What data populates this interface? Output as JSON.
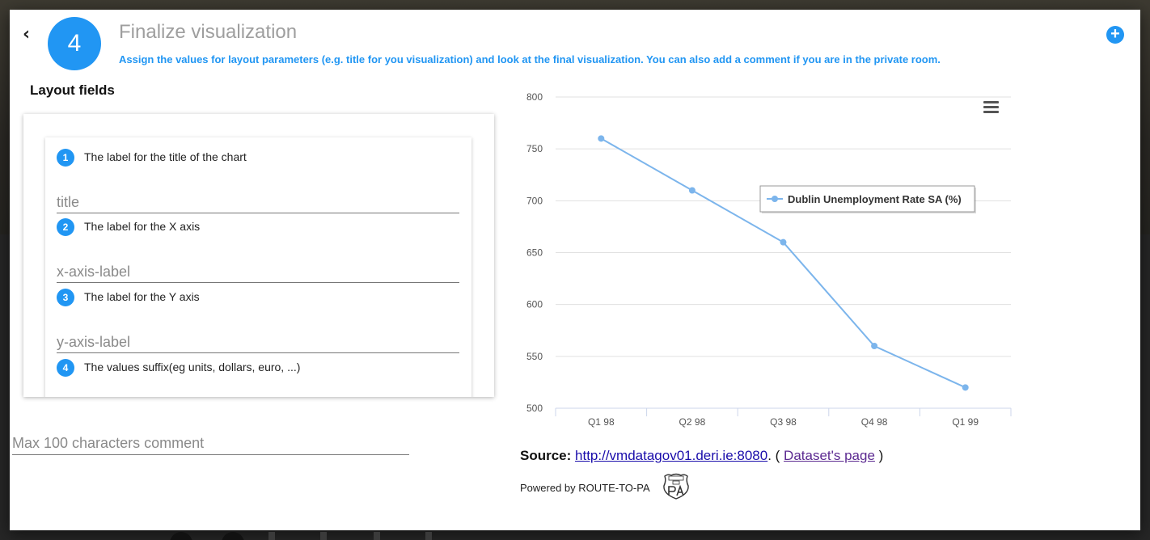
{
  "header": {
    "step_number": "4",
    "title": "Finalize visualization",
    "description": "Assign the values for layout parameters (e.g. title for you visualization) and look at the final visualization. You can also add a comment if you are in the private room.",
    "back_icon": "chevron-left-icon",
    "add_icon": "plus-circle-icon",
    "accent_color": "#2196f3"
  },
  "layout": {
    "heading": "Layout fields",
    "fields": [
      {
        "number": "1",
        "label": "The label for the title of the chart",
        "placeholder": "title",
        "value": ""
      },
      {
        "number": "2",
        "label": "The label for the X axis",
        "placeholder": "x-axis-label",
        "value": ""
      },
      {
        "number": "3",
        "label": "The label for the Y axis",
        "placeholder": "y-axis-label",
        "value": ""
      },
      {
        "number": "4",
        "label": "The values suffix(eg units, dollars, euro, ...)",
        "placeholder": "",
        "value": ""
      }
    ]
  },
  "comment": {
    "placeholder": "Max 100 characters comment",
    "value": ""
  },
  "chart_data": {
    "type": "line",
    "categories": [
      "Q1 98",
      "Q2 98",
      "Q3 98",
      "Q4 98",
      "Q1 99"
    ],
    "series": [
      {
        "name": "Dublin Unemployment Rate SA (%)",
        "values": [
          760,
          710,
          660,
          560,
          520
        ],
        "color": "#7cb5ec"
      }
    ],
    "ylim": [
      500,
      800
    ],
    "yticks": [
      "500",
      "550",
      "600",
      "650",
      "700",
      "750",
      "800"
    ],
    "grid": true,
    "legend_position": "top-right",
    "title": "",
    "xlabel": "",
    "ylabel": "",
    "menu_icon": "hamburger-menu-icon"
  },
  "source": {
    "label": "Source:",
    "url_text": "http://vmdatagov01.deri.ie:8080",
    "separator": ". (",
    "dataset_link": "Dataset's page",
    "closing": ")"
  },
  "footer": {
    "powered_by": "Powered by ROUTE-TO-PA",
    "logo_icon": "route-to-pa-logo"
  }
}
